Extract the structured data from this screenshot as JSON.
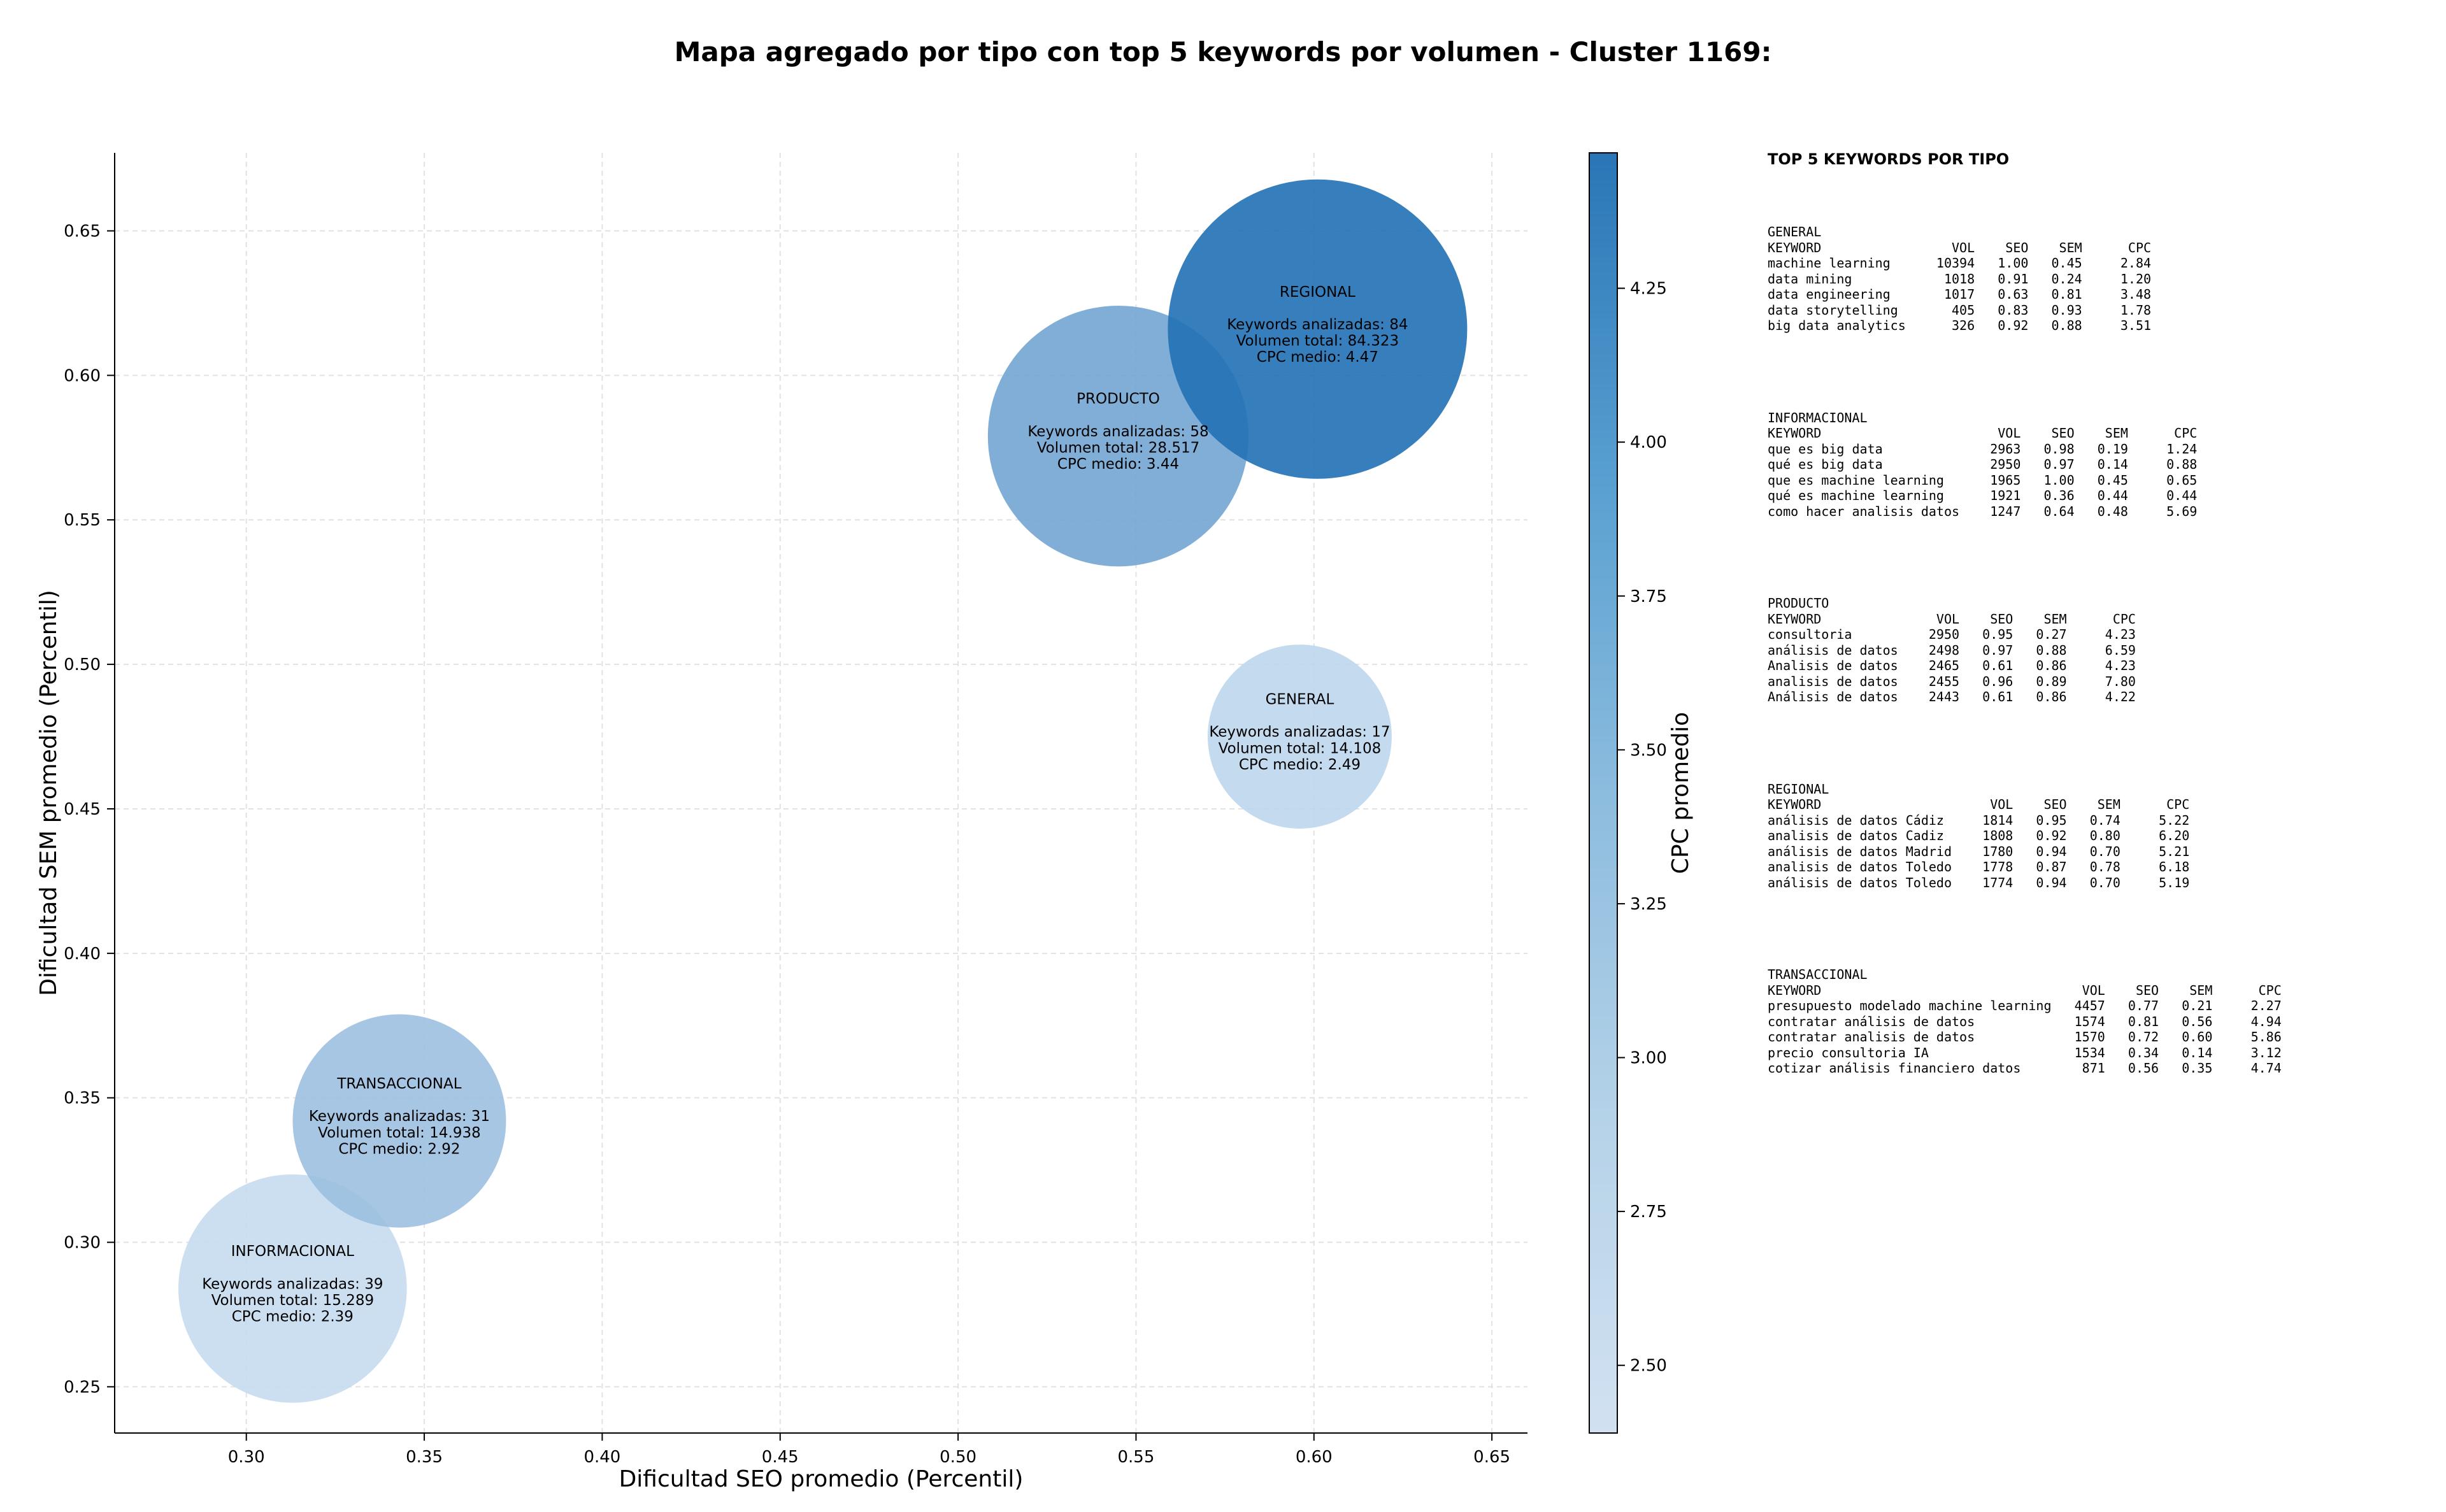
{
  "chart_data": {
    "type": "scatter",
    "title": "Mapa agregado por tipo con top 5 keywords por volumen - Cluster 1169:",
    "xlabel": "Dificultad SEO promedio (Percentil)",
    "ylabel": "Dificultad SEM promedio (Percentil)",
    "xlim": [
      0.263,
      0.66
    ],
    "ylim": [
      0.234,
      0.677
    ],
    "xticks": [
      0.3,
      0.35,
      0.4,
      0.45,
      0.5,
      0.55,
      0.6,
      0.65
    ],
    "yticks": [
      0.25,
      0.3,
      0.35,
      0.4,
      0.45,
      0.5,
      0.55,
      0.6,
      0.65
    ],
    "grid": true,
    "colorbar": {
      "label": "CPC promedio",
      "range": [
        2.39,
        4.47
      ],
      "ticks": [
        2.5,
        2.75,
        3.0,
        3.25,
        3.5,
        3.75,
        4.0,
        4.25
      ],
      "colormap": "Blues",
      "low_color": "#c6dbef",
      "high_color": "#2171b5"
    },
    "points": [
      {
        "type": "GENERAL",
        "x": 0.596,
        "y": 0.475,
        "keywords": 17,
        "volume": "14.108",
        "cpc": 2.49,
        "lines": [
          "GENERAL",
          "",
          "Keywords analizadas: 17",
          "Volumen total: 14.108",
          "CPC medio: 2.49"
        ]
      },
      {
        "type": "INFORMACIONAL",
        "x": 0.313,
        "y": 0.284,
        "keywords": 39,
        "volume": "15.289",
        "cpc": 2.39,
        "lines": [
          "INFORMACIONAL",
          "",
          "Keywords analizadas: 39",
          "Volumen total: 15.289",
          "CPC medio: 2.39"
        ]
      },
      {
        "type": "PRODUCTO",
        "x": 0.545,
        "y": 0.579,
        "keywords": 58,
        "volume": "28.517",
        "cpc": 3.44,
        "lines": [
          "PRODUCTO",
          "",
          "Keywords analizadas: 58",
          "Volumen total: 28.517",
          "CPC medio: 3.44"
        ]
      },
      {
        "type": "REGIONAL",
        "x": 0.601,
        "y": 0.616,
        "keywords": 84,
        "volume": "84.323",
        "cpc": 4.47,
        "lines": [
          "REGIONAL",
          "",
          "Keywords analizadas: 84",
          "Volumen total: 84.323",
          "CPC medio: 4.47"
        ]
      },
      {
        "type": "TRANSACCIONAL",
        "x": 0.343,
        "y": 0.342,
        "keywords": 31,
        "volume": "14.938",
        "cpc": 2.92,
        "lines": [
          "TRANSACCIONAL",
          "",
          "Keywords analizadas: 31",
          "Volumen total: 14.938",
          "CPC medio: 2.92"
        ]
      }
    ]
  },
  "side_panel": {
    "title": "TOP 5 KEYWORDS POR TIPO",
    "blocks": [
      {
        "text": "GENERAL\nKEYWORD                 VOL    SEO    SEM      CPC\nmachine learning      10394   1.00   0.45     2.84\ndata mining            1018   0.91   0.24     1.20\ndata engineering       1017   0.63   0.81     3.48\ndata storytelling       405   0.83   0.93     1.78\nbig data analytics      326   0.92   0.88     3.51"
      },
      {
        "text": "INFORMACIONAL\nKEYWORD                       VOL    SEO    SEM      CPC\nque es big data              2963   0.98   0.19     1.24\nqué es big data              2950   0.97   0.14     0.88\nque es machine learning      1965   1.00   0.45     0.65\nqué es machine learning      1921   0.36   0.44     0.44\ncomo hacer analisis datos    1247   0.64   0.48     5.69"
      },
      {
        "text": "PRODUCTO\nKEYWORD               VOL    SEO    SEM      CPC\nconsultoria          2950   0.95   0.27     4.23\nanálisis de datos    2498   0.97   0.88     6.59\nAnalisis de datos    2465   0.61   0.86     4.23\nanalisis de datos    2455   0.96   0.89     7.80\nAnálisis de datos    2443   0.61   0.86     4.22"
      },
      {
        "text": "REGIONAL\nKEYWORD                      VOL    SEO    SEM      CPC\nanálisis de datos Cádiz     1814   0.95   0.74     5.22\nanalisis de datos Cadiz     1808   0.92   0.80     6.20\nanálisis de datos Madrid    1780   0.94   0.70     5.21\nanalisis de datos Toledo    1778   0.87   0.78     6.18\nanálisis de datos Toledo    1774   0.94   0.70     5.19"
      },
      {
        "text": "TRANSACCIONAL\nKEYWORD                                  VOL    SEO    SEM      CPC\npresupuesto modelado machine learning   4457   0.77   0.21     2.27\ncontratar análisis de datos             1574   0.81   0.56     4.94\ncontratar analisis de datos             1570   0.72   0.60     5.86\nprecio consultoria IA                   1534   0.34   0.14     3.12\ncotizar análisis financiero datos        871   0.56   0.35     4.74"
      }
    ]
  }
}
